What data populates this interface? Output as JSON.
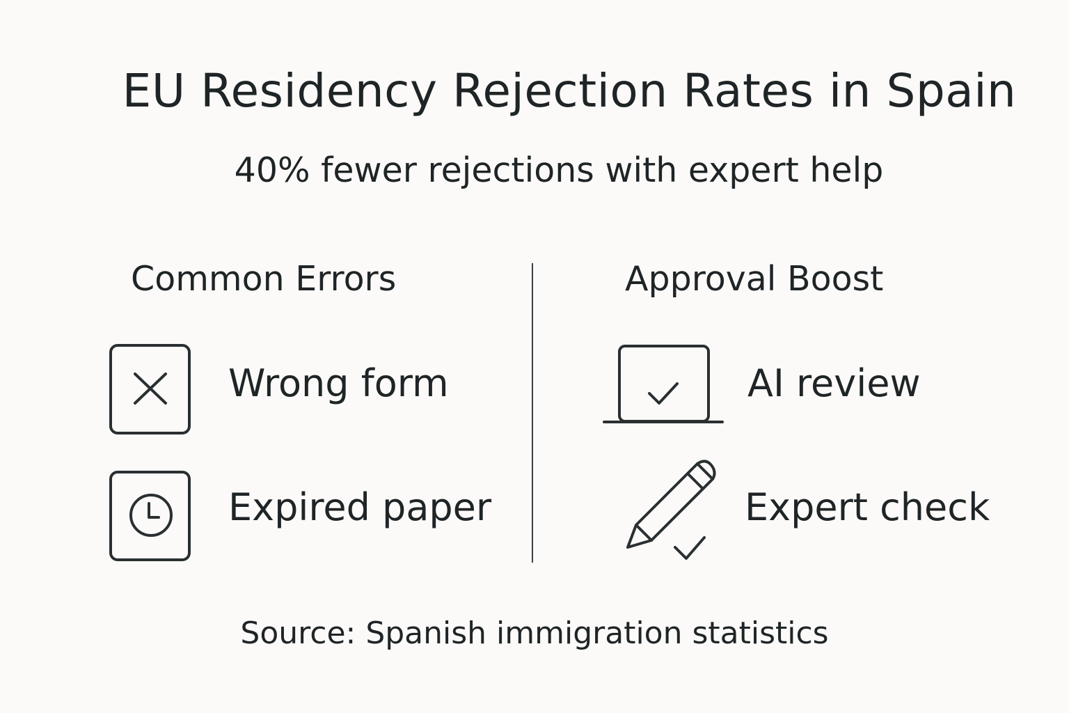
{
  "title": "EU Residency Rejection Rates in Spain",
  "subtitle": "40% fewer rejections with expert help",
  "left_column": {
    "heading": "Common Errors",
    "items": [
      {
        "label": "Wrong form",
        "icon": "x-box-icon"
      },
      {
        "label": "Expired paper",
        "icon": "clock-box-icon"
      }
    ]
  },
  "right_column": {
    "heading": "Approval Boost",
    "items": [
      {
        "label": "AI review",
        "icon": "laptop-check-icon"
      },
      {
        "label": "Expert check",
        "icon": "pencil-check-icon"
      }
    ]
  },
  "source": "Source: Spanish immigration statistics",
  "colors": {
    "background": "#fbfaf8",
    "text": "#1f2426",
    "stroke": "#2a2f31"
  }
}
